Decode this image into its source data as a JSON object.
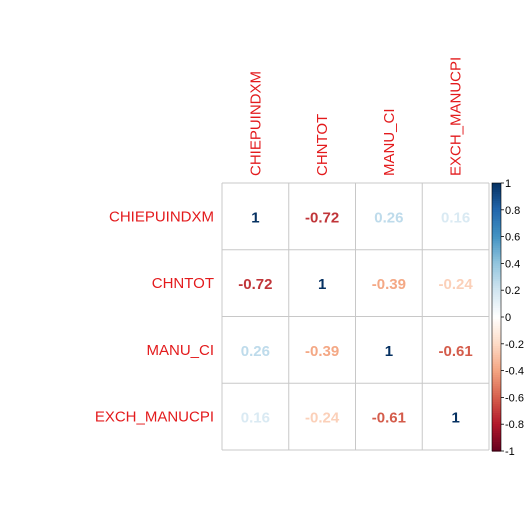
{
  "chart_data": {
    "type": "heatmap",
    "variables": [
      "CHIEPUINDXM",
      "CHNTOT",
      "MANU_CI",
      "EXCH_MANUCPI"
    ],
    "row_labels": [
      "CHIEPUINDXM",
      "CHNTOT",
      "MANU_CI",
      "EXCH_MANUCPI"
    ],
    "column_labels": [
      "CHIEPUINDXM",
      "CHNTOT",
      "MANU_CI",
      "EXCH_MANUCPI"
    ],
    "matrix": [
      [
        1,
        -0.72,
        0.26,
        0.16
      ],
      [
        -0.72,
        1,
        -0.39,
        -0.24
      ],
      [
        0.26,
        -0.39,
        1,
        -0.61
      ],
      [
        0.16,
        -0.24,
        -0.61,
        1
      ]
    ],
    "colorbar": {
      "range": [
        -1,
        1
      ],
      "ticks": [
        -1,
        -0.8,
        -0.6,
        -0.4,
        -0.2,
        0,
        0.2,
        0.4,
        0.6,
        0.8,
        1
      ],
      "tick_labels": [
        "-1",
        "-0.8",
        "-0.6",
        "-0.4",
        "-0.2",
        "0",
        "0.2",
        "0.4",
        "0.6",
        "0.8",
        "1"
      ],
      "low_color": "#67001F",
      "high_color": "#053061"
    },
    "label_color": "#e31a1c",
    "grid": true
  }
}
